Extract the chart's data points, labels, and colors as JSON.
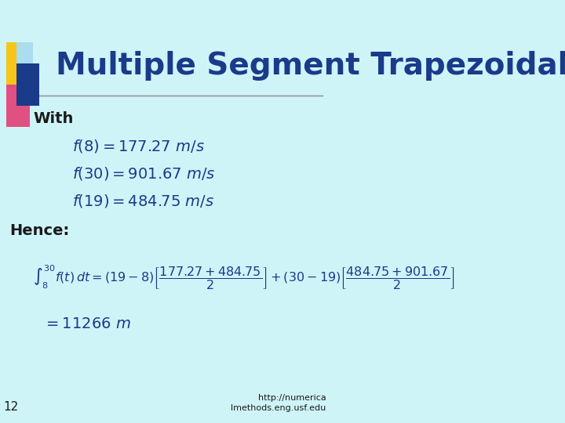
{
  "bg_color": "#cff4f8",
  "title": "Multiple Segment Trapezoidal Rule",
  "title_color": "#1a3a8a",
  "title_fontsize": 28,
  "with_label": "With",
  "hence_label": "Hence:",
  "eq1": "f(8) = 177.27\\; m/s",
  "eq2": "f(30) = 901.67\\; m/s",
  "eq3": "f(19) = 484.75\\; m/s",
  "integral_eq": "\\int_{8}^{30} f(t)dt = (19-8)\\left[\\frac{177.27+484.75}{2}\\right] + (30-19)\\left[\\frac{484.75+901.67}{2}\\right]",
  "result_eq": "= 11266\\; m",
  "footer_text": "http://numerica\nlmethods.eng.usf.edu",
  "page_num": "12",
  "text_color": "#1a3a8a",
  "label_color": "#1a1a1a",
  "line_color": "#888888",
  "logo_yellow": "#f5c518",
  "logo_pink": "#e05080",
  "logo_blue": "#1a3a8a",
  "logo_light": "#aaddee"
}
